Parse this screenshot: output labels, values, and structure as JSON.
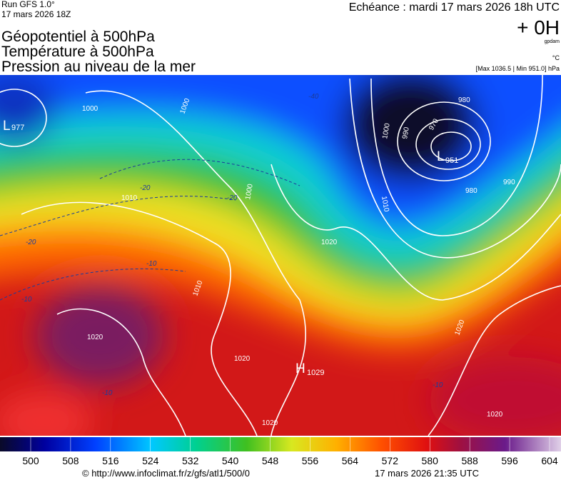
{
  "header": {
    "run": "Run GFS 1.0°",
    "run_date": "17 mars 2026 18Z",
    "valid_time": "Echéance : mardi 17 mars 2026 18h UTC",
    "titles": [
      "Géopotentiel à 500hPa",
      "Température à 500hPa",
      "Pression au niveau de la mer"
    ],
    "forecast_hour": "+ 0H",
    "unit_gpdam": "gpdam",
    "unit_temp": "°C",
    "pressure_range": "[Max 1036.5 | Min 951.0] hPa"
  },
  "pressure_centers": [
    {
      "letter": "L",
      "value": "977"
    },
    {
      "letter": "L",
      "value": "951"
    },
    {
      "letter": "H",
      "value": "1029"
    }
  ],
  "isobar_labels": [
    "1000",
    "1000",
    "1000",
    "990",
    "970",
    "980",
    "980",
    "1010",
    "1000",
    "1020",
    "1010",
    "1010",
    "1020",
    "1020",
    "1020",
    "1020",
    "1020",
    "990"
  ],
  "temperature_labels": [
    "-20",
    "-20",
    "-20",
    "-40",
    "-10",
    "-10",
    "-10",
    "-10"
  ],
  "colorbar": {
    "ticks": [
      500,
      508,
      516,
      524,
      532,
      540,
      548,
      556,
      564,
      572,
      580,
      588,
      596,
      604
    ]
  },
  "footer": {
    "source": "© http://www.infoclimat.fr/z/gfs/atl1/500/0",
    "generated": "17 mars 2026 21:35 UTC"
  }
}
